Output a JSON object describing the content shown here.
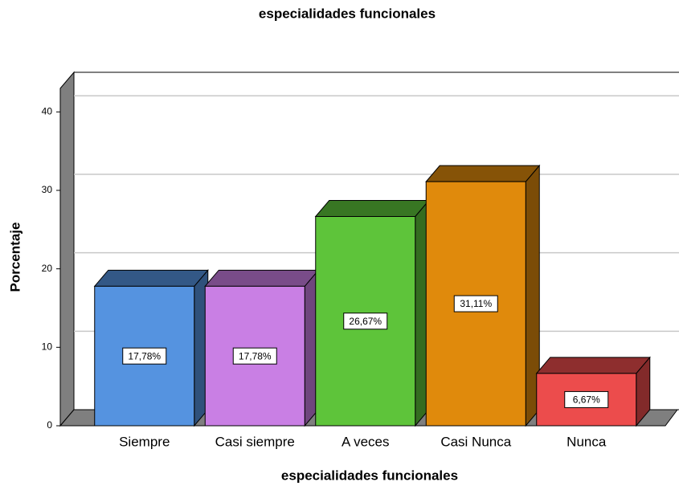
{
  "chart_data": {
    "type": "bar3d",
    "title": "especialidades funcionales",
    "x_label": "especialidades funcionales",
    "y_label": "Porcentaje",
    "categories": [
      "Siempre",
      "Casi siempre",
      "A veces",
      "Casi Nunca",
      "Nunca"
    ],
    "values": [
      17.78,
      17.78,
      26.67,
      31.11,
      6.67
    ],
    "value_labels": [
      "17,78%",
      "17,78%",
      "26,67%",
      "31,11%",
      "6,67%"
    ],
    "colors": [
      "#5593e0",
      "#c97fe4",
      "#5ec43a",
      "#e08a0c",
      "#ec4c4c"
    ],
    "ylim": [
      0,
      43
    ],
    "yticks": [
      0,
      10,
      20,
      30,
      40
    ],
    "grid": true
  }
}
